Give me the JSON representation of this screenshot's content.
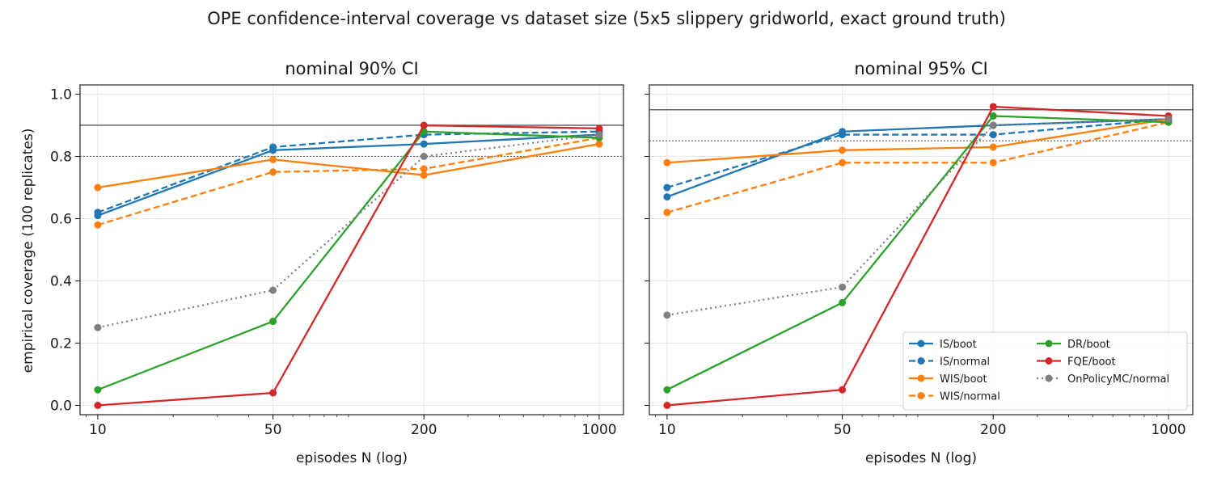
{
  "suptitle": "OPE confidence-interval coverage vs dataset size (5x5 slippery gridworld, exact ground truth)",
  "chart_data": [
    {
      "type": "line",
      "title": "nominal 90% CI",
      "xlabel": "episodes N (log)",
      "ylabel": "empirical coverage (100 replicates)",
      "xscale": "log",
      "xlim": [
        8.5,
        1250
      ],
      "ylim": [
        -0.03,
        1.03
      ],
      "x": [
        10,
        50,
        200,
        1000
      ],
      "xticklabels": [
        "10",
        "50",
        "200",
        "1000"
      ],
      "yticks": [
        0.0,
        0.2,
        0.4,
        0.6,
        0.8,
        1.0
      ],
      "yticklabels": [
        "0.0",
        "0.2",
        "0.4",
        "0.6",
        "0.8",
        "1.0"
      ],
      "grid": true,
      "reference_lines": [
        {
          "y": 0.9,
          "style": "solid",
          "color": "#666666"
        },
        {
          "y": 0.8,
          "style": "dotted",
          "color": "#666666"
        }
      ],
      "series": [
        {
          "name": "IS/boot",
          "color": "#1f77b4",
          "style": "solid",
          "values": [
            0.61,
            0.82,
            0.84,
            0.87
          ]
        },
        {
          "name": "IS/normal",
          "color": "#1f77b4",
          "style": "dashed",
          "values": [
            0.62,
            0.83,
            0.87,
            0.88
          ]
        },
        {
          "name": "WIS/boot",
          "color": "#ff7f0e",
          "style": "solid",
          "values": [
            0.7,
            0.79,
            0.74,
            0.84
          ]
        },
        {
          "name": "WIS/normal",
          "color": "#ff7f0e",
          "style": "dashed",
          "values": [
            0.58,
            0.75,
            0.76,
            0.86
          ]
        },
        {
          "name": "DR/boot",
          "color": "#2ca02c",
          "style": "solid",
          "values": [
            0.05,
            0.27,
            0.88,
            0.86
          ]
        },
        {
          "name": "FQE/boot",
          "color": "#d62728",
          "style": "solid",
          "values": [
            0.0,
            0.04,
            0.9,
            0.89
          ]
        },
        {
          "name": "OnPolicyMC/normal",
          "color": "#7f7f7f",
          "style": "dotted",
          "values": [
            0.25,
            0.37,
            0.8,
            0.87
          ]
        }
      ]
    },
    {
      "type": "line",
      "title": "nominal 95% CI",
      "xlabel": "episodes N (log)",
      "ylabel": "",
      "xscale": "log",
      "xlim": [
        8.5,
        1250
      ],
      "ylim": [
        -0.03,
        1.03
      ],
      "x": [
        10,
        50,
        200,
        1000
      ],
      "xticklabels": [
        "10",
        "50",
        "200",
        "1000"
      ],
      "yticks": [
        0.0,
        0.2,
        0.4,
        0.6,
        0.8,
        1.0
      ],
      "yticklabels": [],
      "grid": true,
      "legend": "lower-right",
      "reference_lines": [
        {
          "y": 0.95,
          "style": "solid",
          "color": "#666666"
        },
        {
          "y": 0.85,
          "style": "dotted",
          "color": "#666666"
        }
      ],
      "series": [
        {
          "name": "IS/boot",
          "color": "#1f77b4",
          "style": "solid",
          "values": [
            0.67,
            0.88,
            0.9,
            0.92
          ]
        },
        {
          "name": "IS/normal",
          "color": "#1f77b4",
          "style": "dashed",
          "values": [
            0.7,
            0.87,
            0.87,
            0.92
          ]
        },
        {
          "name": "WIS/boot",
          "color": "#ff7f0e",
          "style": "solid",
          "values": [
            0.78,
            0.82,
            0.83,
            0.92
          ]
        },
        {
          "name": "WIS/normal",
          "color": "#ff7f0e",
          "style": "dashed",
          "values": [
            0.62,
            0.78,
            0.78,
            0.91
          ]
        },
        {
          "name": "DR/boot",
          "color": "#2ca02c",
          "style": "solid",
          "values": [
            0.05,
            0.33,
            0.93,
            0.91
          ]
        },
        {
          "name": "FQE/boot",
          "color": "#d62728",
          "style": "solid",
          "values": [
            0.0,
            0.05,
            0.96,
            0.93
          ]
        },
        {
          "name": "OnPolicyMC/normal",
          "color": "#7f7f7f",
          "style": "dotted",
          "values": [
            0.29,
            0.38,
            0.9,
            0.92
          ]
        }
      ]
    }
  ]
}
